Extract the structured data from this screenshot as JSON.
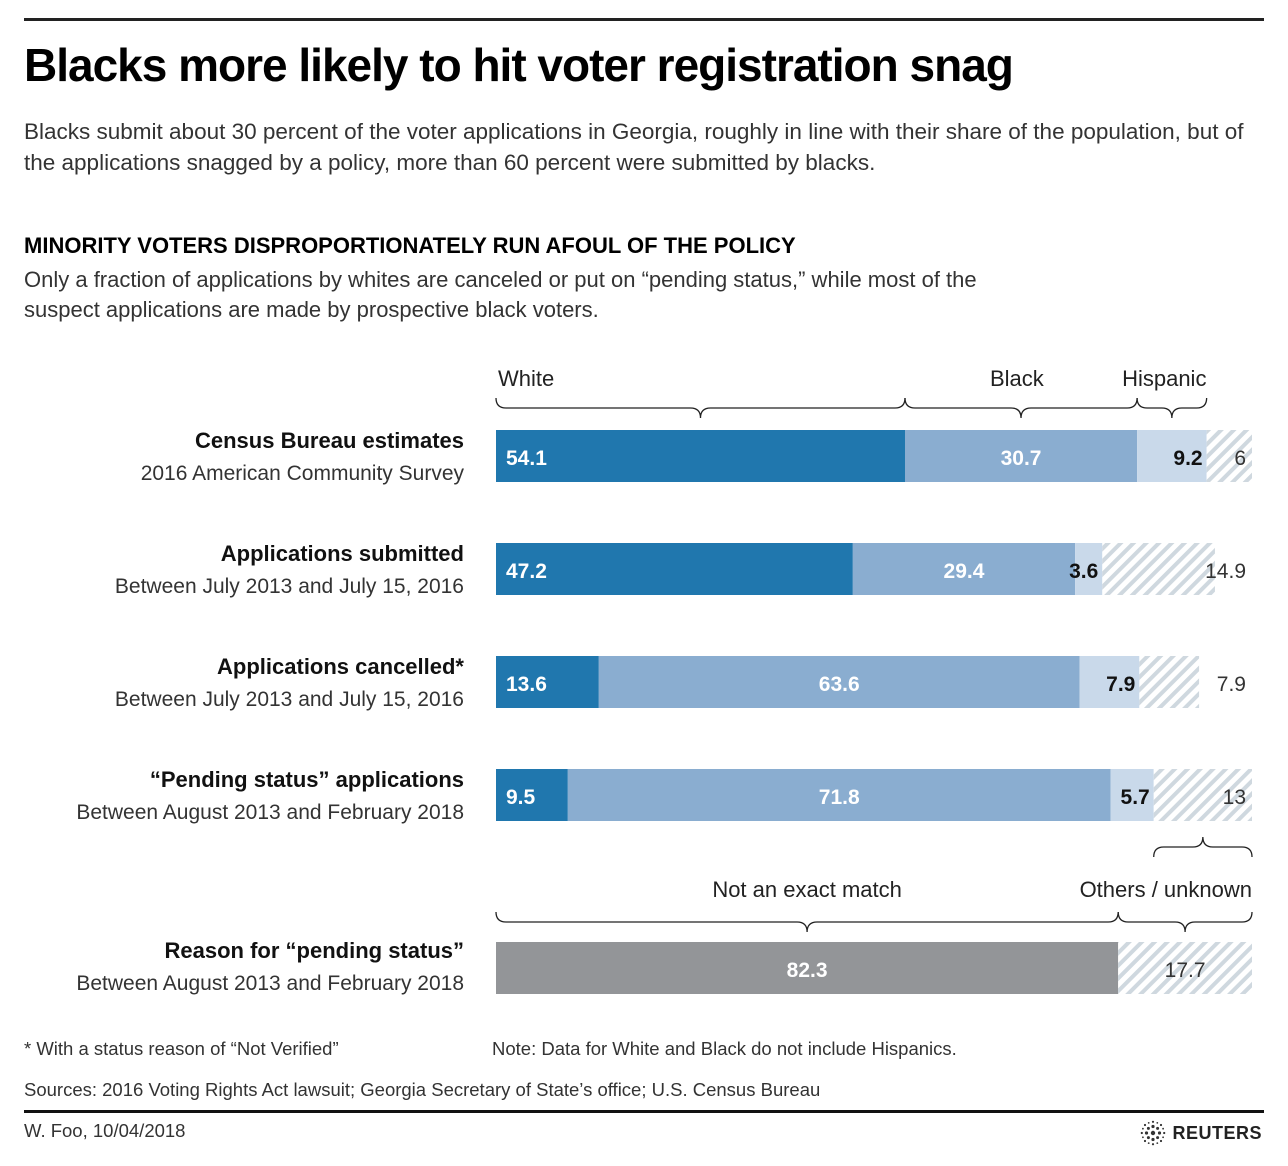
{
  "header": {
    "title": "Blacks more likely to hit voter registration snag",
    "intro": "Blacks submit about 30 percent of the voter applications in Georgia, roughly in line with their share of the population, but of the applications snagged by a policy, more than 60 percent were submitted by blacks."
  },
  "section": {
    "title": "MINORITY VOTERS DISPROPORTIONATELY RUN AFOUL OF THE POLICY",
    "subtitle": "Only a fraction of applications by whites are canceled or put on “pending status,” while most of the suspect applications are made by prospective black voters."
  },
  "colors": {
    "white": "#2077ae",
    "black": "#8aadd0",
    "hispanic": "#c9d9ea",
    "other_stripe": "#cfd8df",
    "not_exact_match": "#939598"
  },
  "chart_data": [
    {
      "type": "bar",
      "orientation": "horizontal",
      "stacked": true,
      "unit": "percent",
      "xlim": [
        0,
        100
      ],
      "legend_position": "top",
      "legend": [
        "White",
        "Black",
        "Hispanic"
      ],
      "categories": [
        {
          "label": "Census Bureau estimates",
          "sublabel": "2016 American Community Survey"
        },
        {
          "label": "Applications submitted",
          "sublabel": "Between July 2013 and July 15, 2016"
        },
        {
          "label": "Applications cancelled*",
          "sublabel": "Between July 2013 and July 15, 2016"
        },
        {
          "label": "“Pending status” applications",
          "sublabel": "Between August 2013 and February 2018"
        }
      ],
      "series": [
        {
          "name": "White",
          "values": [
            54.1,
            47.2,
            13.6,
            9.5
          ],
          "labels": [
            "54.1",
            "47.2",
            "13.6",
            "9.5"
          ]
        },
        {
          "name": "Black",
          "values": [
            30.7,
            29.4,
            63.6,
            71.8
          ],
          "labels": [
            "30.7",
            "29.4",
            "63.6",
            "71.8"
          ]
        },
        {
          "name": "Hispanic",
          "values": [
            9.2,
            3.6,
            7.9,
            5.7
          ],
          "labels": [
            "9.2",
            "3.6",
            "7.9",
            "5.7"
          ]
        },
        {
          "name": "Others / unknown",
          "values": [
            6,
            14.9,
            7.9,
            13
          ],
          "labels": [
            "6",
            "14.9",
            "7.9",
            "13"
          ]
        }
      ],
      "annotation": "Others / unknown"
    },
    {
      "type": "bar",
      "orientation": "horizontal",
      "stacked": true,
      "unit": "percent",
      "xlim": [
        0,
        100
      ],
      "legend": [
        "Not an exact match",
        "Others / unknown"
      ],
      "categories": [
        {
          "label": "Reason for “pending status”",
          "sublabel": "Between August 2013 and February 2018"
        }
      ],
      "series": [
        {
          "name": "Not an exact match",
          "values": [
            82.3
          ],
          "labels": [
            "82.3"
          ]
        },
        {
          "name": "Others / unknown",
          "values": [
            17.7
          ],
          "labels": [
            "17.7"
          ]
        }
      ]
    }
  ],
  "footer": {
    "footnote": "* With a status reason of “Not Verified”",
    "note": "Note: Data for White and Black do not include Hispanics.",
    "sources": "Sources: 2016 Voting Rights Act lawsuit; Georgia Secretary of State’s office; U.S. Census Bureau",
    "byline": "W. Foo, 10/04/2018",
    "logo": "REUTERS"
  }
}
